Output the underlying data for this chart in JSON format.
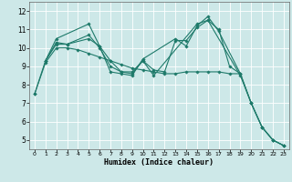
{
  "background_color": "#cde8e8",
  "grid_color": "#ffffff",
  "line_color": "#1e7a6a",
  "xlabel": "Humidex (Indice chaleur)",
  "xlim": [
    -0.5,
    23.5
  ],
  "ylim": [
    4.5,
    12.5
  ],
  "yticks": [
    5,
    6,
    7,
    8,
    9,
    10,
    11,
    12
  ],
  "xticks": [
    0,
    1,
    2,
    3,
    4,
    5,
    6,
    7,
    8,
    9,
    10,
    11,
    12,
    13,
    14,
    15,
    16,
    17,
    18,
    19,
    20,
    21,
    22,
    23
  ],
  "lines": [
    {
      "x": [
        1,
        2,
        5,
        6,
        7,
        8,
        9,
        10,
        13,
        14,
        15,
        16,
        17,
        19,
        20,
        21,
        22,
        23
      ],
      "y": [
        9.3,
        10.5,
        11.3,
        10.1,
        8.7,
        8.6,
        8.5,
        9.4,
        10.5,
        10.1,
        11.2,
        11.7,
        10.9,
        8.6,
        7.0,
        5.7,
        5.0,
        4.7
      ]
    },
    {
      "x": [
        1,
        2,
        3,
        5,
        6,
        7,
        8,
        9,
        10,
        11,
        15,
        16,
        19,
        20,
        21,
        22,
        23
      ],
      "y": [
        9.3,
        10.2,
        10.2,
        10.7,
        10.0,
        9.0,
        8.7,
        8.7,
        9.3,
        8.5,
        11.3,
        11.5,
        8.5,
        7.0,
        5.7,
        5.0,
        4.7
      ]
    },
    {
      "x": [
        0,
        1,
        2,
        3,
        5,
        6,
        7,
        8,
        9,
        10,
        11,
        12,
        13,
        14,
        15,
        16,
        17,
        18,
        19,
        20,
        21,
        22,
        23
      ],
      "y": [
        7.5,
        9.3,
        10.3,
        10.2,
        10.5,
        10.1,
        9.3,
        8.7,
        8.6,
        9.3,
        8.8,
        8.7,
        10.4,
        10.4,
        11.1,
        11.5,
        11.0,
        9.0,
        8.6,
        7.0,
        5.7,
        5.0,
        4.7
      ]
    },
    {
      "x": [
        0,
        1,
        2,
        3,
        4,
        5,
        6,
        7,
        8,
        9,
        10,
        11,
        12,
        13,
        14,
        15,
        16,
        17,
        18,
        19
      ],
      "y": [
        7.5,
        9.2,
        10.0,
        10.0,
        9.9,
        9.7,
        9.5,
        9.3,
        9.1,
        8.9,
        8.8,
        8.7,
        8.6,
        8.6,
        8.7,
        8.7,
        8.7,
        8.7,
        8.6,
        8.6
      ]
    }
  ]
}
